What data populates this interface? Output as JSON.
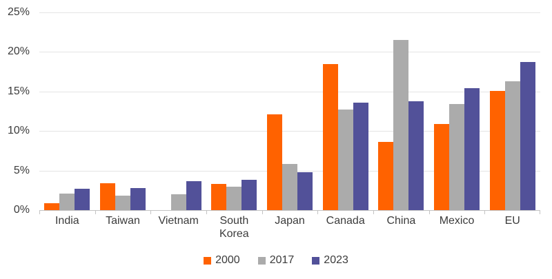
{
  "chart_data": {
    "type": "bar",
    "title": "",
    "categories": [
      "India",
      "Taiwan",
      "Vietnam",
      "South Korea",
      "Japan",
      "Canada",
      "China",
      "Mexico",
      "EU"
    ],
    "series": [
      {
        "name": "2000",
        "color": "#FF6200",
        "values": [
          0.9,
          3.4,
          0,
          3.3,
          12.1,
          18.5,
          8.6,
          10.9,
          15.1
        ]
      },
      {
        "name": "2017",
        "color": "#ABABAB",
        "values": [
          2.1,
          1.8,
          2.0,
          3.0,
          5.8,
          12.7,
          21.5,
          13.4,
          16.3
        ]
      },
      {
        "name": "2023",
        "color": "#525199",
        "values": [
          2.7,
          2.8,
          3.7,
          3.8,
          4.8,
          13.6,
          13.8,
          15.4,
          18.7
        ]
      }
    ],
    "y_axis": {
      "min": 0,
      "max": 25,
      "step": 5,
      "tick_labels": [
        "0%",
        "5%",
        "10%",
        "15%",
        "20%",
        "25%"
      ],
      "format": "percent"
    },
    "grid": true,
    "legend_position": "bottom",
    "legend_labels": [
      "2000",
      "2017",
      "2023"
    ]
  },
  "colors": {
    "series_2000": "#FF6200",
    "series_2017": "#ABABAB",
    "series_2023": "#525199",
    "gridline": "#E4E4E4",
    "axis_line": "#C3C3C3",
    "text": "#3B3B3B",
    "background": "#FFFFFF"
  }
}
